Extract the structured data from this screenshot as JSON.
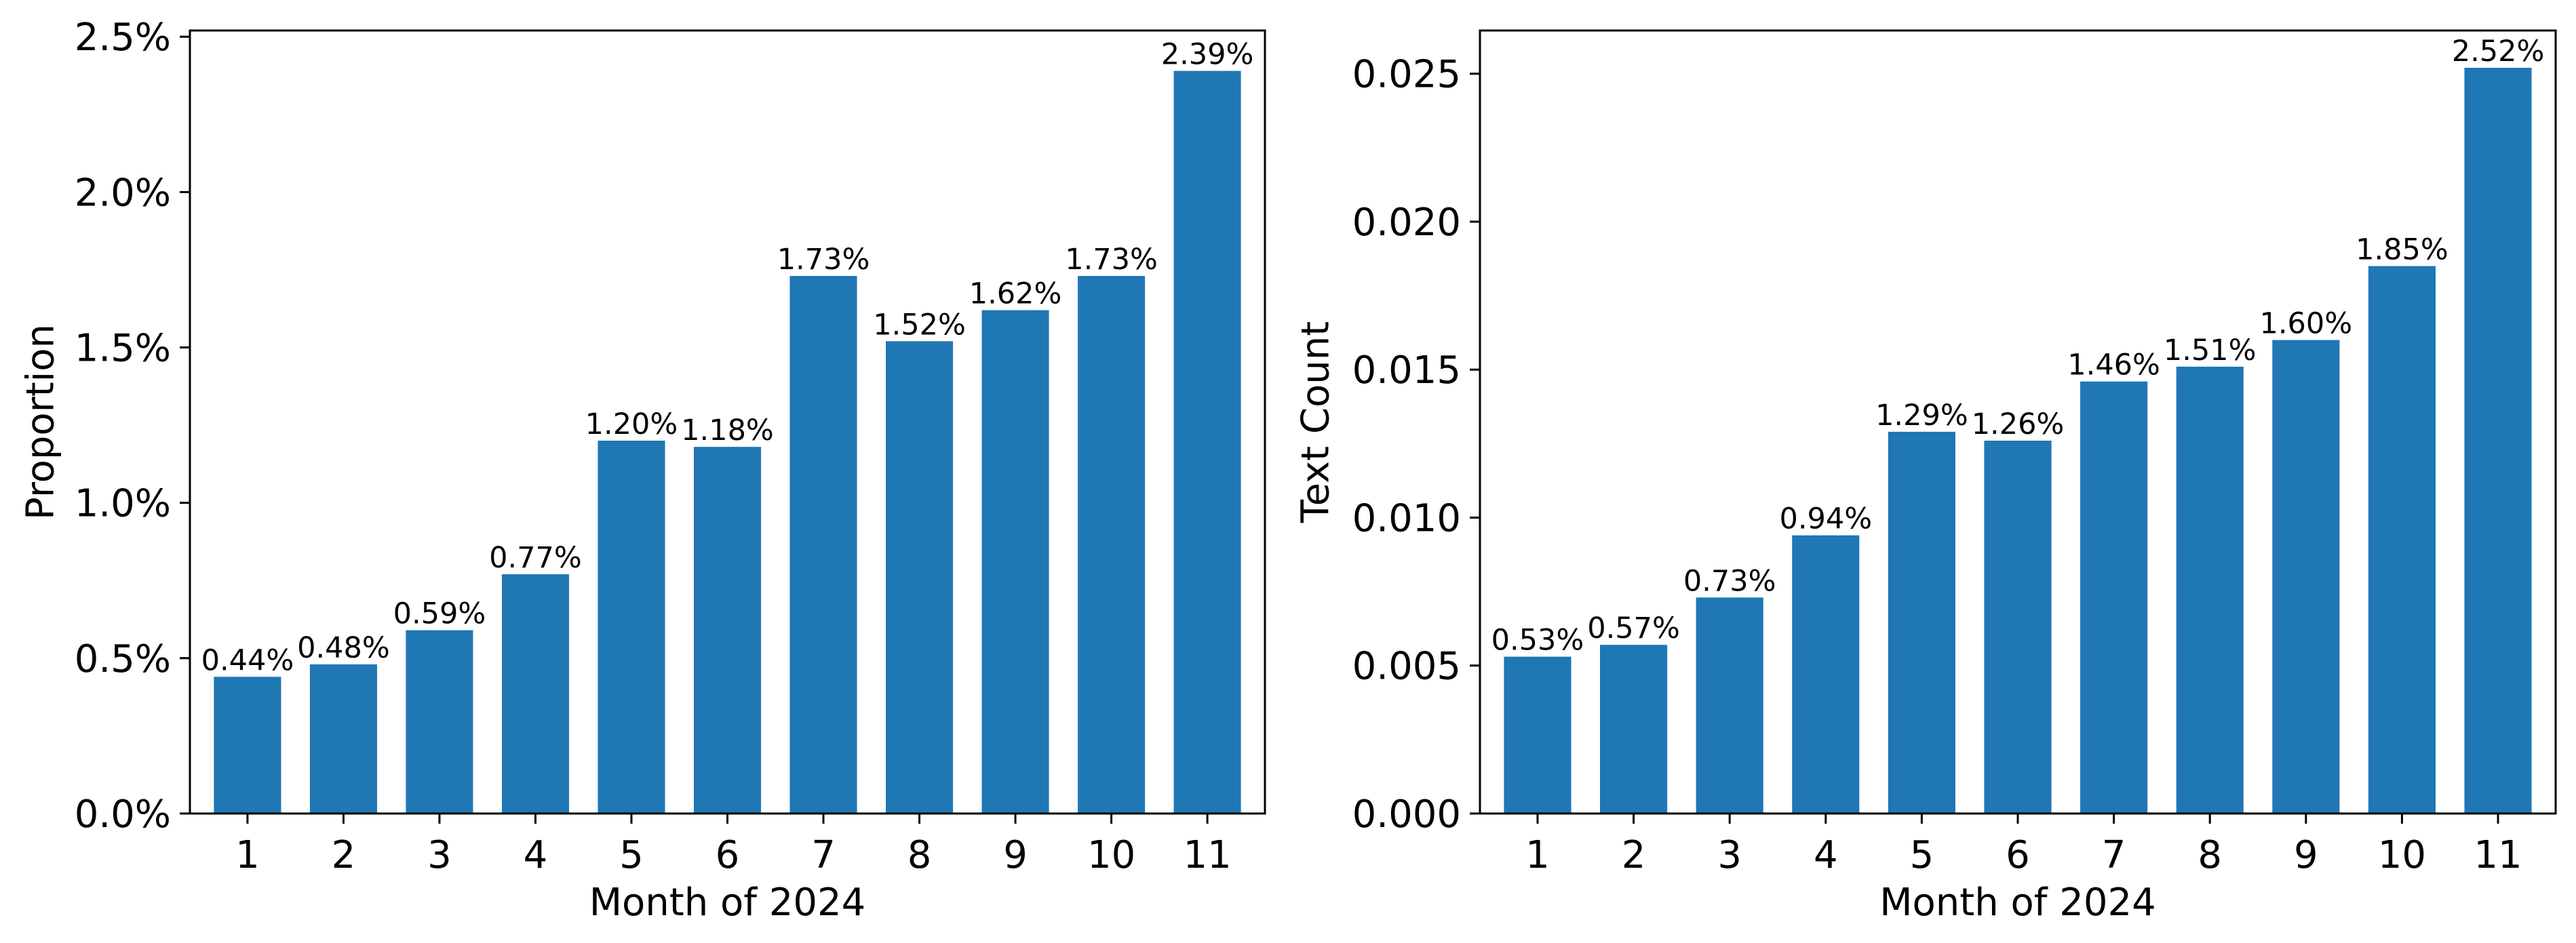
{
  "colors": {
    "bar": "#1f77b4",
    "axis": "#000000",
    "background": "#ffffff"
  },
  "chart_data": [
    {
      "type": "bar",
      "title": "",
      "xlabel": "Month of 2024",
      "ylabel": "Proportion",
      "categories": [
        "1",
        "2",
        "3",
        "4",
        "5",
        "6",
        "7",
        "8",
        "9",
        "10",
        "11"
      ],
      "values": [
        0.44,
        0.48,
        0.59,
        0.77,
        1.2,
        1.18,
        1.73,
        1.52,
        1.62,
        1.73,
        2.39
      ],
      "value_labels": [
        "0.44%",
        "0.48%",
        "0.59%",
        "0.77%",
        "1.20%",
        "1.18%",
        "1.73%",
        "1.52%",
        "1.62%",
        "1.73%",
        "2.39%"
      ],
      "ylim": [
        0,
        2.52
      ],
      "yticks": [
        0,
        0.5,
        1.0,
        1.5,
        2.0,
        2.5
      ],
      "ytick_labels": [
        "0.0%",
        "0.5%",
        "1.0%",
        "1.5%",
        "2.0%",
        "2.5%"
      ],
      "grid": false,
      "legend": "none"
    },
    {
      "type": "bar",
      "title": "",
      "xlabel": "Month of 2024",
      "ylabel": "Text Count",
      "categories": [
        "1",
        "2",
        "3",
        "4",
        "5",
        "6",
        "7",
        "8",
        "9",
        "10",
        "11"
      ],
      "values": [
        0.0053,
        0.0057,
        0.0073,
        0.0094,
        0.0129,
        0.0126,
        0.0146,
        0.0151,
        0.016,
        0.0185,
        0.0252
      ],
      "value_labels": [
        "0.53%",
        "0.57%",
        "0.73%",
        "0.94%",
        "1.29%",
        "1.26%",
        "1.46%",
        "1.51%",
        "1.60%",
        "1.85%",
        "2.52%"
      ],
      "ylim": [
        0,
        0.02646
      ],
      "yticks": [
        0,
        0.005,
        0.01,
        0.015,
        0.02,
        0.025
      ],
      "ytick_labels": [
        "0.000",
        "0.005",
        "0.010",
        "0.015",
        "0.020",
        "0.025"
      ],
      "grid": false,
      "legend": "none"
    }
  ]
}
